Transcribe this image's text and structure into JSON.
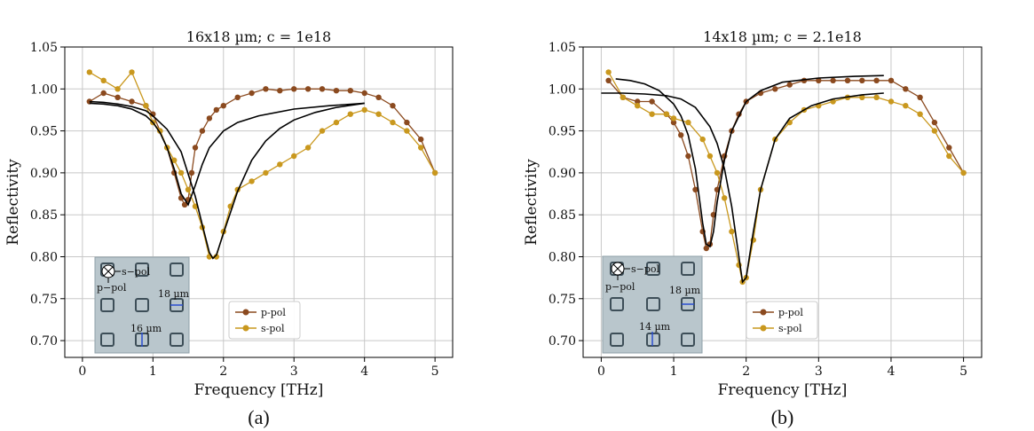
{
  "colors": {
    "p_pol": "#8b4a1f",
    "s_pol": "#c9981e",
    "fit": "#000000",
    "grid": "#c8c8c8",
    "inset_bg": "#b9c6cc"
  },
  "panels": [
    {
      "caption": "(a)",
      "inset": {
        "pol_s": "s−pol",
        "pol_p": "p−pol",
        "dim_h": "18 µm",
        "dim_w": "16 µm"
      }
    },
    {
      "caption": "(b)",
      "inset": {
        "pol_s": "s−pol",
        "pol_p": "p−pol",
        "dim_h": "18 µm",
        "dim_w": "14 µm"
      }
    }
  ],
  "chart_data": [
    {
      "type": "scatter",
      "title": "16x18 µm; c = 1e18",
      "xlabel": "Frequency [THz]",
      "ylabel": "Reflectivity",
      "xlim": [
        -0.25,
        5.25
      ],
      "ylim": [
        0.68,
        1.05
      ],
      "xticks": [
        "0",
        "1",
        "2",
        "3",
        "4",
        "5"
      ],
      "yticks": [
        "0.70",
        "0.75",
        "0.80",
        "0.85",
        "0.90",
        "0.95",
        "1.00",
        "1.05"
      ],
      "grid": true,
      "legend_position": "lower-right",
      "series": [
        {
          "name": "p-pol",
          "x": [
            0.1,
            0.3,
            0.5,
            0.7,
            0.9,
            1.0,
            1.1,
            1.2,
            1.3,
            1.4,
            1.45,
            1.5,
            1.55,
            1.6,
            1.7,
            1.8,
            1.9,
            2.0,
            2.2,
            2.4,
            2.6,
            2.8,
            3.0,
            3.2,
            3.4,
            3.6,
            3.8,
            4.0,
            4.2,
            4.4,
            4.6,
            4.8,
            5.0
          ],
          "y": [
            0.985,
            0.995,
            0.99,
            0.985,
            0.98,
            0.97,
            0.95,
            0.93,
            0.9,
            0.87,
            0.862,
            0.868,
            0.9,
            0.93,
            0.95,
            0.965,
            0.975,
            0.98,
            0.99,
            0.995,
            1.0,
            0.998,
            1.0,
            1.0,
            1.0,
            0.998,
            0.998,
            0.995,
            0.99,
            0.98,
            0.96,
            0.94,
            0.9
          ]
        },
        {
          "name": "s-pol",
          "x": [
            0.1,
            0.3,
            0.5,
            0.7,
            0.9,
            1.0,
            1.1,
            1.2,
            1.3,
            1.4,
            1.5,
            1.6,
            1.7,
            1.8,
            1.9,
            2.0,
            2.1,
            2.2,
            2.4,
            2.6,
            2.8,
            3.0,
            3.2,
            3.4,
            3.6,
            3.8,
            4.0,
            4.2,
            4.4,
            4.6,
            4.8,
            5.0
          ],
          "y": [
            1.02,
            1.01,
            1.0,
            1.02,
            0.98,
            0.96,
            0.95,
            0.93,
            0.915,
            0.9,
            0.88,
            0.86,
            0.835,
            0.8,
            0.8,
            0.83,
            0.86,
            0.88,
            0.89,
            0.9,
            0.91,
            0.92,
            0.93,
            0.95,
            0.96,
            0.97,
            0.975,
            0.97,
            0.96,
            0.95,
            0.93,
            0.9
          ]
        },
        {
          "name": "p-pol fit",
          "x": [
            0.1,
            0.3,
            0.5,
            0.7,
            0.9,
            1.0,
            1.1,
            1.2,
            1.3,
            1.4,
            1.5,
            1.6,
            1.7,
            1.8,
            2.0,
            2.2,
            2.5,
            3.0,
            3.5,
            4.0
          ],
          "y": [
            0.983,
            0.982,
            0.98,
            0.976,
            0.968,
            0.96,
            0.948,
            0.93,
            0.905,
            0.875,
            0.862,
            0.885,
            0.91,
            0.93,
            0.95,
            0.96,
            0.968,
            0.976,
            0.98,
            0.983
          ]
        },
        {
          "name": "s-pol fit",
          "x": [
            0.1,
            0.3,
            0.5,
            0.7,
            0.9,
            1.0,
            1.2,
            1.4,
            1.6,
            1.7,
            1.8,
            1.85,
            1.9,
            2.0,
            2.2,
            2.4,
            2.6,
            2.8,
            3.0,
            3.3,
            3.6,
            4.0
          ],
          "y": [
            0.985,
            0.984,
            0.982,
            0.979,
            0.974,
            0.968,
            0.952,
            0.925,
            0.872,
            0.838,
            0.805,
            0.798,
            0.802,
            0.828,
            0.878,
            0.915,
            0.938,
            0.953,
            0.963,
            0.972,
            0.978,
            0.983
          ]
        }
      ]
    },
    {
      "type": "scatter",
      "title": "14x18 µm; c = 2.1e18",
      "xlabel": "Frequency [THz]",
      "ylabel": "Reflectivity",
      "xlim": [
        -0.25,
        5.25
      ],
      "ylim": [
        0.68,
        1.05
      ],
      "xticks": [
        "0",
        "1",
        "2",
        "3",
        "4",
        "5"
      ],
      "yticks": [
        "0.70",
        "0.75",
        "0.80",
        "0.85",
        "0.90",
        "0.95",
        "1.00",
        "1.05"
      ],
      "grid": true,
      "legend_position": "lower-right",
      "series": [
        {
          "name": "p-pol",
          "x": [
            0.1,
            0.3,
            0.5,
            0.7,
            0.9,
            1.0,
            1.1,
            1.2,
            1.3,
            1.4,
            1.45,
            1.5,
            1.55,
            1.6,
            1.7,
            1.8,
            1.9,
            2.0,
            2.2,
            2.4,
            2.6,
            2.8,
            3.0,
            3.2,
            3.4,
            3.6,
            3.8,
            4.0,
            4.2,
            4.4,
            4.6,
            4.8,
            5.0
          ],
          "y": [
            1.01,
            0.99,
            0.985,
            0.985,
            0.97,
            0.96,
            0.945,
            0.92,
            0.88,
            0.83,
            0.81,
            0.815,
            0.85,
            0.88,
            0.92,
            0.95,
            0.97,
            0.985,
            0.995,
            1.0,
            1.005,
            1.01,
            1.01,
            1.01,
            1.01,
            1.01,
            1.01,
            1.01,
            1.0,
            0.99,
            0.96,
            0.93,
            0.9
          ]
        },
        {
          "name": "s-pol",
          "x": [
            0.1,
            0.3,
            0.5,
            0.7,
            0.9,
            1.0,
            1.2,
            1.4,
            1.5,
            1.6,
            1.7,
            1.8,
            1.9,
            1.95,
            2.0,
            2.1,
            2.2,
            2.4,
            2.6,
            2.8,
            3.0,
            3.2,
            3.4,
            3.6,
            3.8,
            4.0,
            4.2,
            4.4,
            4.6,
            4.8,
            5.0
          ],
          "y": [
            1.02,
            0.99,
            0.98,
            0.97,
            0.97,
            0.965,
            0.96,
            0.94,
            0.92,
            0.9,
            0.87,
            0.83,
            0.79,
            0.77,
            0.775,
            0.82,
            0.88,
            0.94,
            0.96,
            0.975,
            0.98,
            0.985,
            0.99,
            0.99,
            0.99,
            0.985,
            0.98,
            0.97,
            0.95,
            0.92,
            0.9
          ]
        },
        {
          "name": "p-pol fit",
          "x": [
            0.2,
            0.4,
            0.6,
            0.8,
            1.0,
            1.1,
            1.2,
            1.3,
            1.4,
            1.45,
            1.5,
            1.55,
            1.6,
            1.7,
            1.8,
            2.0,
            2.2,
            2.5,
            3.0,
            3.5,
            3.9
          ],
          "y": [
            1.012,
            1.01,
            1.006,
            0.998,
            0.982,
            0.968,
            0.945,
            0.905,
            0.84,
            0.815,
            0.812,
            0.83,
            0.865,
            0.915,
            0.95,
            0.985,
            0.998,
            1.008,
            1.013,
            1.015,
            1.016
          ]
        },
        {
          "name": "s-pol fit",
          "x": [
            0.0,
            0.3,
            0.6,
            0.9,
            1.1,
            1.3,
            1.5,
            1.6,
            1.7,
            1.8,
            1.9,
            1.95,
            2.0,
            2.1,
            2.2,
            2.4,
            2.6,
            2.9,
            3.2,
            3.6,
            3.9
          ],
          "y": [
            0.995,
            0.995,
            0.994,
            0.992,
            0.988,
            0.978,
            0.955,
            0.935,
            0.905,
            0.86,
            0.8,
            0.77,
            0.775,
            0.83,
            0.88,
            0.94,
            0.965,
            0.98,
            0.988,
            0.993,
            0.995
          ]
        }
      ]
    }
  ]
}
